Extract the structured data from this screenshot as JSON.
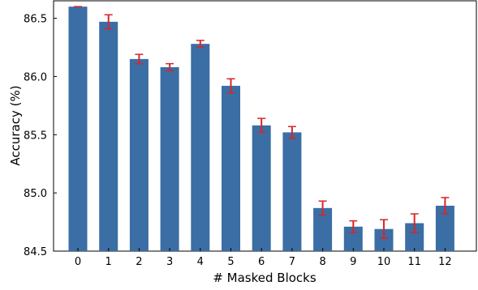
{
  "chart_data": {
    "type": "bar",
    "xlabel": "# Masked Blocks",
    "ylabel": "Accuracy (%)",
    "categories": [
      "0",
      "1",
      "2",
      "3",
      "4",
      "5",
      "6",
      "7",
      "8",
      "9",
      "10",
      "11",
      "12"
    ],
    "values": [
      86.6,
      86.47,
      86.15,
      86.08,
      86.28,
      85.92,
      85.58,
      85.52,
      84.87,
      84.71,
      84.69,
      84.74,
      84.89
    ],
    "errors": [
      0.0,
      0.06,
      0.04,
      0.03,
      0.03,
      0.06,
      0.06,
      0.05,
      0.06,
      0.05,
      0.08,
      0.08,
      0.07
    ],
    "ylim": [
      84.5,
      86.65
    ],
    "yticks": [
      "84.5",
      "85.0",
      "85.5",
      "86.0",
      "86.5"
    ],
    "bar_color": "#3a6ea5",
    "error_color": "#d62728",
    "grid": false
  }
}
